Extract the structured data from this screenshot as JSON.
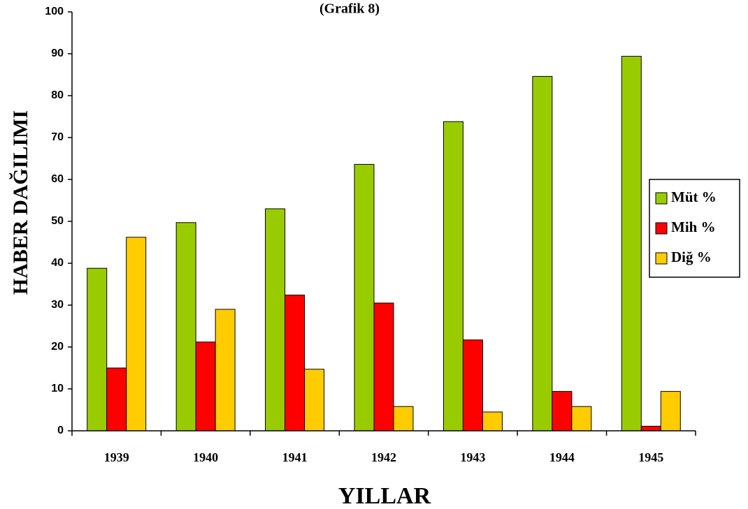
{
  "chart_data": {
    "type": "bar",
    "title": "(Grafik 8)",
    "x_label": "YILLAR",
    "y_label": "HABER DAĞILIMI",
    "categories": [
      "1939",
      "1940",
      "1941",
      "1942",
      "1943",
      "1944",
      "1945"
    ],
    "series": [
      {
        "name": "Müt %",
        "color": "#99cc00",
        "values": [
          38.8,
          49.7,
          53,
          63.6,
          73.8,
          84.6,
          89.4
        ]
      },
      {
        "name": "Mih %",
        "color": "#ff0000",
        "values": [
          15,
          21.2,
          32.4,
          30.5,
          21.7,
          9.4,
          1.1
        ]
      },
      {
        "name": "Diğ %",
        "color": "#ffcc00",
        "values": [
          46.2,
          29,
          14.7,
          5.8,
          4.5,
          5.8,
          9.4
        ]
      }
    ],
    "ylim": [
      0,
      100
    ],
    "yticks": [
      0,
      10,
      20,
      30,
      40,
      50,
      60,
      70,
      80,
      90,
      100
    ],
    "legend": "right"
  }
}
